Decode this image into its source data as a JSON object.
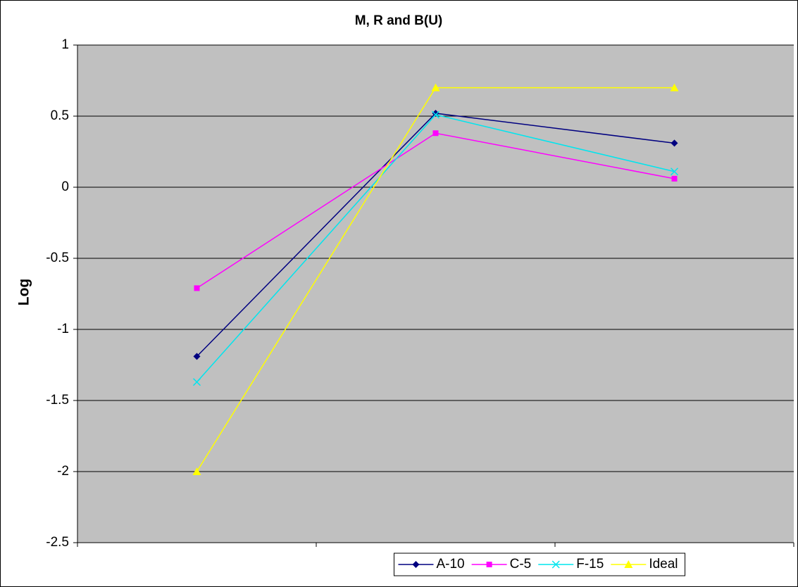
{
  "chart_data": {
    "type": "line",
    "title": "M, R and B(U)",
    "y_label": "Log",
    "categories": [
      null,
      null,
      null
    ],
    "series": [
      {
        "name": "A-10",
        "color": "#000080",
        "marker": "diamond",
        "values": [
          -1.19,
          0.52,
          0.31
        ]
      },
      {
        "name": "C-5",
        "color": "#ff00ff",
        "marker": "square",
        "values": [
          -0.71,
          0.38,
          0.06
        ]
      },
      {
        "name": "F-15",
        "color": "#00e5ee",
        "marker": "x",
        "values": [
          -1.37,
          0.51,
          0.11
        ]
      },
      {
        "name": "Ideal",
        "color": "#ffff00",
        "marker": "triangle",
        "values": [
          -2,
          0.7,
          0.7
        ]
      }
    ],
    "ylim": [
      -2.5,
      1
    ],
    "yticks": [
      -2.5,
      -2,
      -1.5,
      -1,
      -0.5,
      0,
      0.5,
      1
    ],
    "grid": true,
    "legend": "bottom"
  }
}
